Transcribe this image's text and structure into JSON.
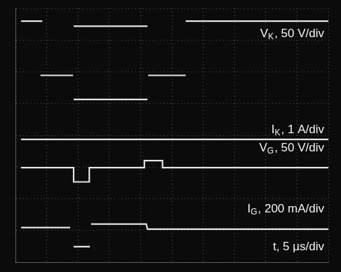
{
  "chart_data": {
    "type": "line",
    "xlim": [
      0,
      50
    ],
    "xticks": [
      0,
      5,
      10,
      15,
      20,
      25,
      30,
      35,
      40,
      45,
      50
    ],
    "ylim": [
      0,
      8
    ],
    "yticks": [
      0,
      1,
      2,
      3,
      4,
      5,
      6,
      7,
      8
    ],
    "grid": true,
    "tick_labels": false,
    "series": [
      {
        "color": "#e4e4e4",
        "x": [
          0.9,
          4.3,
          4.4,
          9.3,
          21.1,
          21.2,
          27.2,
          50
        ],
        "values": [
          7.6,
          7.6,
          null,
          7.44,
          7.44,
          null,
          7.6,
          7.6
        ]
      },
      {
        "color": "#e4e4e4",
        "x": [
          4.0,
          9.2,
          9.25,
          9.3,
          21.1,
          21.15,
          21.2,
          27.2
        ],
        "values": [
          5.89,
          5.89,
          null,
          5.13,
          5.13,
          null,
          5.89,
          5.89
        ]
      },
      {
        "color": "#e4e4e4",
        "x": [
          0.9,
          50
        ],
        "values": [
          3.87,
          3.87
        ]
      },
      {
        "color": "#e4e4e4",
        "x": [
          0.9,
          9.3,
          9.3,
          11.8,
          11.8,
          20.6,
          20.6,
          23.5,
          23.5,
          50
        ],
        "values": [
          2.98,
          2.98,
          2.53,
          2.53,
          2.98,
          2.98,
          3.2,
          3.2,
          2.98,
          2.98
        ]
      },
      {
        "color": "#e4e4e4",
        "x": [
          0.9,
          8.75,
          9.0,
          9.3,
          11.9,
          12.0,
          12.1,
          20.9,
          21.1,
          50
        ],
        "values": [
          1.09,
          1.09,
          null,
          0.49,
          0.49,
          null,
          1.2,
          1.2,
          1.04,
          1.04
        ]
      }
    ],
    "annotations": [
      {
        "main": "V",
        "sub": "K",
        "rest": ", 50 V/div"
      },
      {
        "main": "I",
        "sub": "K",
        "rest": ", 1 A/div"
      },
      {
        "main": "V",
        "sub": "G",
        "rest": ", 50 V/div"
      },
      {
        "main": "I",
        "sub": "G",
        "rest": ", 200 mA/div"
      },
      {
        "main": "t",
        "rest": ", 5 µs/div"
      }
    ]
  }
}
